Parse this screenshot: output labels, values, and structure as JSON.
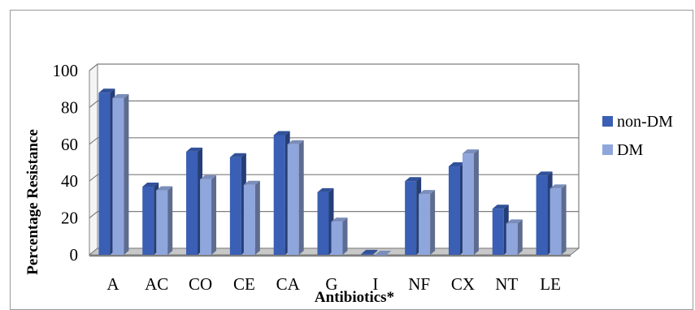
{
  "chart_data": {
    "type": "bar",
    "style": "3d-clustered",
    "categories": [
      "A",
      "AC",
      "CO",
      "CE",
      "CA",
      "G",
      "I",
      "NF",
      "CX",
      "NT",
      "LE"
    ],
    "series": [
      {
        "name": "non-DM",
        "color": "#3a5fb5",
        "values": [
          88,
          37,
          56,
          53,
          65,
          34,
          0.5,
          40,
          48,
          25,
          43
        ]
      },
      {
        "name": "DM",
        "color": "#8fa6dc",
        "values": [
          85,
          35,
          41,
          38,
          60,
          18,
          0,
          33,
          55,
          17,
          36
        ]
      }
    ],
    "title": "",
    "xlabel": "Antibiotics*",
    "ylabel": "Percentage Resistance",
    "ylim": [
      0,
      100
    ],
    "yticks": [
      "0",
      "20",
      "40",
      "60",
      "80",
      "100"
    ],
    "grid": true,
    "legend_position": "right"
  }
}
